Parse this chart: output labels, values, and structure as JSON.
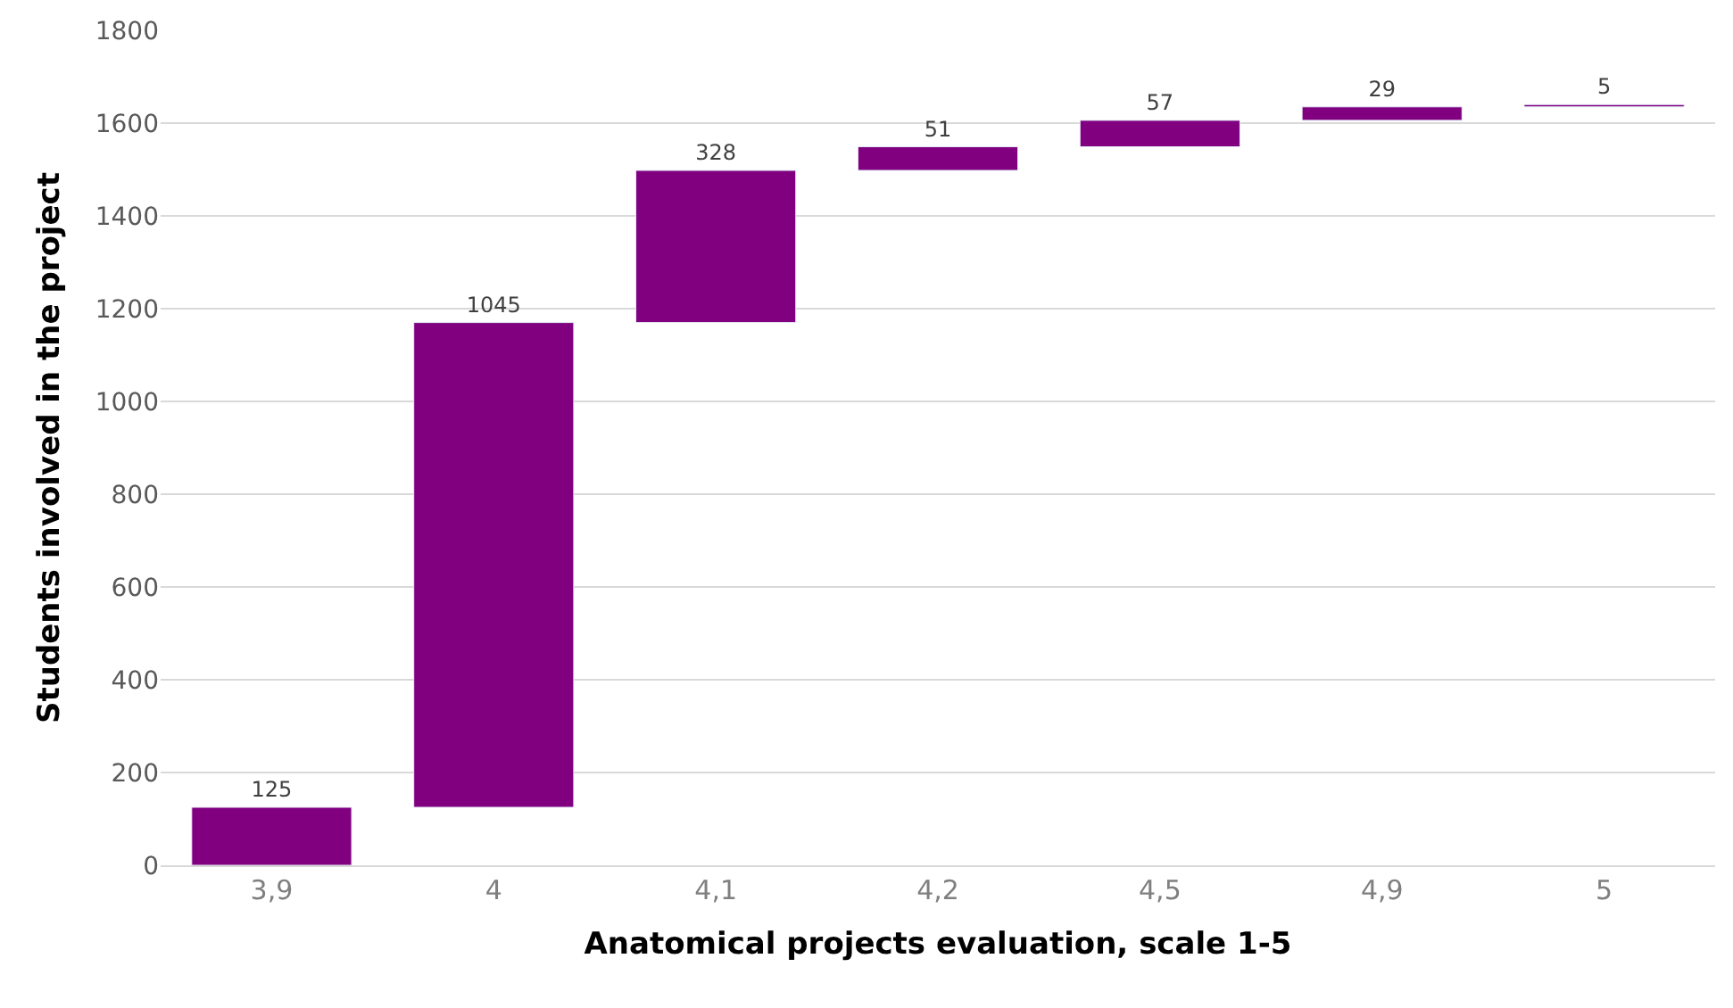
{
  "chart_data": {
    "type": "bar",
    "xlabel": "Anatomical projects evaluation, scale 1-5",
    "ylabel": "Students involved in the project",
    "categories": [
      "3,9",
      "4",
      "4,1",
      "4,2",
      "4,5",
      "4,9",
      "5"
    ],
    "values": [
      125,
      1045,
      328,
      51,
      57,
      29,
      5
    ],
    "base": [
      0,
      125,
      1170,
      1498,
      1549,
      1606,
      1635
    ],
    "color": "#800080",
    "data_labels": true,
    "ylim": [
      0,
      1800
    ],
    "yticks": [
      0,
      200,
      400,
      600,
      800,
      1000,
      1200,
      1400,
      1600,
      1800
    ],
    "grid": "y",
    "legend": false
  }
}
